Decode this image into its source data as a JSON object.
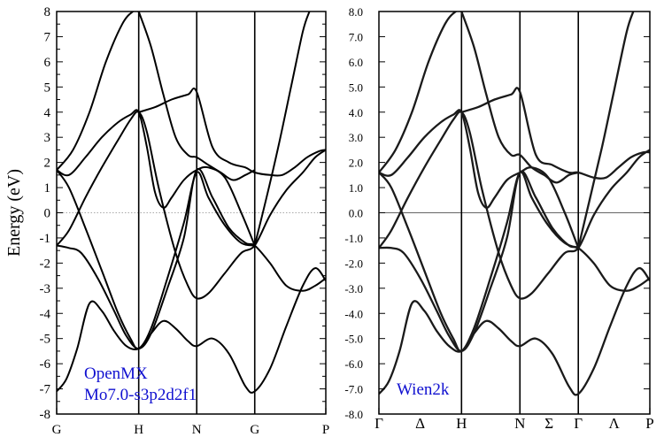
{
  "chart_data": [
    {
      "type": "line",
      "title": "",
      "ylabel": "Energy (eV)",
      "xlabel": "",
      "ylim": [
        -8,
        8
      ],
      "y_ticks": [
        "8",
        "7",
        "6",
        "5",
        "4",
        "3",
        "2",
        "1",
        "0",
        "-1",
        "-2",
        "-3",
        "-4",
        "-5",
        "-6",
        "-7",
        "-8"
      ],
      "k_points": [
        {
          "label": "G",
          "x": 0
        },
        {
          "label": "H",
          "x": 1
        },
        {
          "label": "N",
          "x": 1.707
        },
        {
          "label": "G",
          "x": 2.414
        },
        {
          "label": "P",
          "x": 3.28
        }
      ],
      "x_ticks": [
        0,
        1,
        1.707,
        2.414,
        3.28
      ],
      "annotations": [
        "OpenMX",
        "Mo7.0-s3p2d2f1"
      ],
      "annotation_color": "#1010d0",
      "fermi_line": "dotted",
      "bands": [
        {
          "x": [
            0,
            0.12,
            0.25,
            0.4,
            0.55,
            0.7,
            0.85,
            1.0,
            1.15,
            1.3,
            1.45,
            1.6,
            1.707,
            1.9,
            2.1,
            2.3,
            2.414,
            2.6,
            2.8,
            3.0,
            3.15,
            3.28
          ],
          "y": [
            -7.1,
            -6.6,
            -5.4,
            -3.6,
            -3.9,
            -4.7,
            -5.3,
            -5.4,
            -4.8,
            -4.3,
            -4.6,
            -5.1,
            -5.3,
            -5.0,
            -5.6,
            -6.9,
            -7.1,
            -6.2,
            -4.5,
            -2.9,
            -2.2,
            -2.7
          ]
        },
        {
          "x": [
            0,
            0.15,
            0.3,
            0.5,
            0.7,
            0.85,
            1.0,
            1.15,
            1.35,
            1.55,
            1.707,
            1.9,
            2.1,
            2.3,
            2.414,
            2.6,
            2.8,
            3.0,
            3.15,
            3.28
          ],
          "y": [
            -1.3,
            -1.4,
            -1.6,
            -2.6,
            -3.9,
            -4.9,
            -5.4,
            -4.8,
            -3.0,
            -1.0,
            1.7,
            0.6,
            -0.6,
            -1.2,
            -1.3,
            -2.0,
            -2.9,
            -3.1,
            -2.9,
            -2.6
          ]
        },
        {
          "x": [
            0,
            0.15,
            0.35,
            0.55,
            0.75,
            0.9,
            1.0,
            1.1,
            1.25,
            1.45,
            1.6,
            1.707,
            1.85,
            2.05,
            2.25,
            2.414,
            2.6,
            2.8,
            3.0,
            3.15,
            3.28
          ],
          "y": [
            -1.3,
            -0.7,
            0.6,
            1.8,
            2.9,
            3.7,
            4.0,
            3.2,
            0.9,
            -1.6,
            -2.9,
            -3.4,
            -3.2,
            -2.4,
            -1.6,
            -1.3,
            -0.1,
            0.9,
            1.6,
            2.2,
            2.5
          ]
        },
        {
          "x": [
            0,
            0.15,
            0.35,
            0.55,
            0.75,
            0.9,
            1.0,
            1.15,
            1.35,
            1.55,
            1.707,
            1.85,
            2.05,
            2.25,
            2.414
          ],
          "y": [
            1.7,
            1.0,
            -0.6,
            -2.3,
            -4.0,
            -5.0,
            -5.4,
            -4.6,
            -2.6,
            -0.4,
            1.6,
            0.6,
            -0.5,
            -1.2,
            -1.3
          ]
        },
        {
          "x": [
            0,
            0.15,
            0.35,
            0.55,
            0.75,
            0.9,
            1.0,
            1.1,
            1.2,
            1.3,
            1.4,
            1.55,
            1.707,
            1.85,
            2.05,
            2.25,
            2.414
          ],
          "y": [
            1.7,
            1.5,
            2.2,
            3.0,
            3.6,
            3.9,
            4.0,
            2.6,
            0.8,
            0.2,
            0.6,
            1.3,
            1.7,
            1.8,
            1.4,
            0.0,
            -1.3
          ]
        },
        {
          "x": [
            0,
            0.2,
            0.4,
            0.6,
            0.8,
            0.93,
            1.0
          ],
          "y": [
            1.7,
            2.5,
            4.0,
            6.0,
            7.5,
            8.0,
            8.0
          ]
        },
        {
          "x": [
            1.0,
            1.2,
            1.4,
            1.6,
            1.707,
            1.9,
            2.1,
            2.3,
            2.414,
            2.6,
            2.75,
            2.9,
            3.05,
            3.2,
            3.28
          ],
          "y": [
            4.0,
            4.2,
            4.5,
            4.7,
            4.8,
            2.6,
            2.0,
            1.8,
            1.6,
            1.5,
            1.5,
            1.8,
            2.2,
            2.45,
            2.5
          ]
        },
        {
          "x": [
            1.0,
            1.15,
            1.3,
            1.45,
            1.6,
            1.707,
            1.85,
            2.0,
            2.15,
            2.3,
            2.414
          ],
          "y": [
            8.0,
            6.6,
            4.7,
            3.0,
            2.3,
            2.2,
            1.9,
            1.6,
            1.3,
            1.5,
            1.7
          ]
        },
        {
          "x": [
            2.414,
            2.55,
            2.7,
            2.85,
            3.0,
            3.08
          ],
          "y": [
            -1.3,
            0.5,
            2.6,
            4.9,
            7.2,
            8.0
          ]
        }
      ]
    },
    {
      "type": "line",
      "title": "",
      "ylabel": "",
      "xlabel": "",
      "ylim": [
        -8,
        8
      ],
      "y_ticks": [
        "8.0",
        "7.0",
        "6.0",
        "5.0",
        "4.0",
        "3.0",
        "2.0",
        "1.0",
        "0.0",
        "-1.0",
        "-2.0",
        "-3.0",
        "-4.0",
        "-5.0",
        "-6.0",
        "-7.0",
        "-8.0"
      ],
      "k_points": [
        {
          "label": "Γ",
          "x": 0
        },
        {
          "label": "Δ",
          "x": 0.5
        },
        {
          "label": "H",
          "x": 1
        },
        {
          "label": "N",
          "x": 1.707
        },
        {
          "label": "Σ",
          "x": 2.06
        },
        {
          "label": "Γ",
          "x": 2.414
        },
        {
          "label": "Λ",
          "x": 2.847
        },
        {
          "label": "P",
          "x": 3.28
        }
      ],
      "x_ticks": [
        0,
        1,
        1.707,
        2.414,
        3.28
      ],
      "annotations": [
        "Wien2k"
      ],
      "annotation_color": "#1010d0",
      "fermi_line": "solid",
      "bands": [
        {
          "x": [
            0,
            0.12,
            0.25,
            0.4,
            0.55,
            0.7,
            0.85,
            1.0,
            1.15,
            1.3,
            1.45,
            1.6,
            1.707,
            1.9,
            2.1,
            2.3,
            2.414,
            2.6,
            2.8,
            3.0,
            3.15,
            3.28
          ],
          "y": [
            -7.2,
            -6.7,
            -5.5,
            -3.6,
            -3.9,
            -4.7,
            -5.3,
            -5.5,
            -4.8,
            -4.3,
            -4.6,
            -5.1,
            -5.3,
            -5.0,
            -5.6,
            -6.9,
            -7.2,
            -6.2,
            -4.5,
            -2.9,
            -2.2,
            -2.7
          ]
        },
        {
          "x": [
            0,
            0.15,
            0.3,
            0.5,
            0.7,
            0.85,
            1.0,
            1.15,
            1.35,
            1.55,
            1.707,
            1.9,
            2.1,
            2.3,
            2.414,
            2.6,
            2.8,
            3.0,
            3.15,
            3.28
          ],
          "y": [
            -1.4,
            -1.4,
            -1.6,
            -2.6,
            -3.9,
            -4.9,
            -5.5,
            -4.8,
            -3.0,
            -1.0,
            1.6,
            0.6,
            -0.6,
            -1.3,
            -1.4,
            -2.0,
            -2.9,
            -3.1,
            -2.9,
            -2.6
          ]
        },
        {
          "x": [
            0,
            0.15,
            0.35,
            0.55,
            0.75,
            0.9,
            1.0,
            1.1,
            1.25,
            1.45,
            1.6,
            1.707,
            1.85,
            2.05,
            2.25,
            2.414,
            2.6,
            2.8,
            3.0,
            3.15,
            3.28
          ],
          "y": [
            -1.4,
            -0.7,
            0.6,
            1.8,
            2.9,
            3.7,
            4.0,
            3.2,
            0.9,
            -1.6,
            -2.9,
            -3.4,
            -3.2,
            -2.4,
            -1.6,
            -1.4,
            -0.1,
            0.9,
            1.6,
            2.2,
            2.5
          ]
        },
        {
          "x": [
            0,
            0.15,
            0.35,
            0.55,
            0.75,
            0.9,
            1.0,
            1.15,
            1.35,
            1.55,
            1.707,
            1.85,
            2.05,
            2.25,
            2.414
          ],
          "y": [
            1.6,
            1.0,
            -0.6,
            -2.3,
            -4.0,
            -5.0,
            -5.5,
            -4.6,
            -2.6,
            -0.4,
            1.6,
            0.6,
            -0.5,
            -1.2,
            -1.4
          ]
        },
        {
          "x": [
            0,
            0.15,
            0.35,
            0.55,
            0.75,
            0.9,
            1.0,
            1.1,
            1.2,
            1.3,
            1.4,
            1.55,
            1.707,
            1.85,
            2.05,
            2.25,
            2.414
          ],
          "y": [
            1.6,
            1.5,
            2.2,
            3.0,
            3.6,
            3.9,
            4.0,
            2.6,
            0.8,
            0.2,
            0.6,
            1.3,
            1.6,
            1.8,
            1.4,
            0.0,
            -1.4
          ]
        },
        {
          "x": [
            0,
            0.2,
            0.4,
            0.6,
            0.8,
            0.93,
            1.0
          ],
          "y": [
            1.6,
            2.5,
            4.0,
            6.0,
            7.5,
            8.0,
            8.0
          ]
        },
        {
          "x": [
            1.0,
            1.2,
            1.4,
            1.6,
            1.707,
            1.9,
            2.1,
            2.3,
            2.414,
            2.6,
            2.75,
            2.9,
            3.05,
            3.2,
            3.28
          ],
          "y": [
            4.0,
            4.2,
            4.5,
            4.7,
            4.8,
            2.3,
            1.9,
            1.6,
            1.6,
            1.4,
            1.4,
            1.8,
            2.2,
            2.4,
            2.4
          ]
        },
        {
          "x": [
            1.0,
            1.15,
            1.3,
            1.45,
            1.6,
            1.707,
            1.85,
            2.0,
            2.15,
            2.3,
            2.414
          ],
          "y": [
            8.0,
            6.6,
            4.7,
            3.0,
            2.3,
            2.3,
            1.8,
            1.5,
            1.2,
            1.5,
            1.6
          ]
        },
        {
          "x": [
            2.414,
            2.55,
            2.7,
            2.85,
            3.0,
            3.08
          ],
          "y": [
            -1.4,
            0.5,
            2.6,
            4.9,
            7.2,
            8.0
          ]
        }
      ]
    }
  ]
}
